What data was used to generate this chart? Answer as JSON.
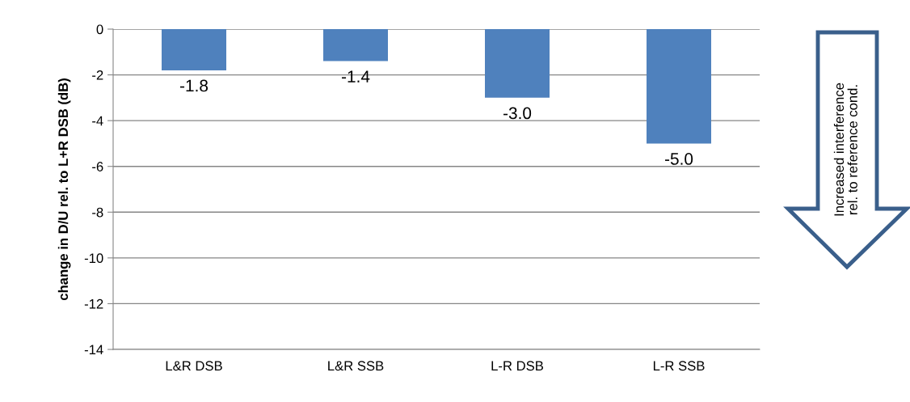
{
  "chart_data": {
    "type": "bar",
    "ylabel": "change in D/U rel. to L+R DSB (dB)",
    "categories": [
      "L&R DSB",
      "L&R SSB",
      "L-R DSB",
      "L-R SSB"
    ],
    "values": [
      -1.8,
      -1.4,
      -3.0,
      -5.0
    ],
    "value_labels": [
      "-1.8",
      "-1.4",
      "-3.0",
      "-5.0"
    ],
    "color": "#4f81bd",
    "ylim": [
      -14,
      0
    ],
    "yticks": [
      -14,
      -12,
      -10,
      -8,
      -6,
      -4,
      -2,
      0
    ],
    "grid": "y",
    "annotations": [
      "Increased interference\nrel. to reference cond."
    ]
  }
}
